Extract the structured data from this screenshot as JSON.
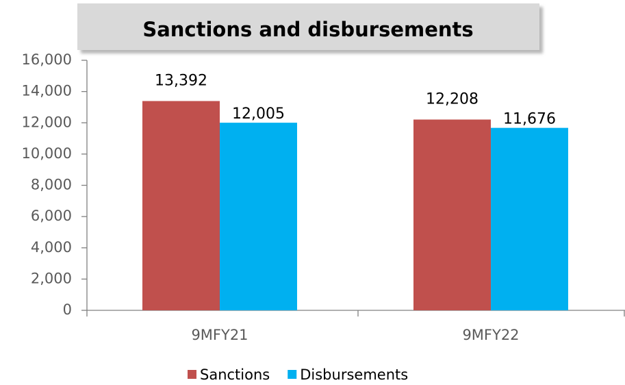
{
  "chart_data": {
    "type": "bar",
    "title": "Sanctions and disbursements",
    "categories": [
      "9MFY21",
      "9MFY22"
    ],
    "series": [
      {
        "name": "Sanctions",
        "color": "#c0504d",
        "values": [
          13392,
          12208
        ],
        "value_labels": [
          "13,392",
          "12,208"
        ]
      },
      {
        "name": "Disbursements",
        "color": "#00b0f0",
        "values": [
          12005,
          11676
        ],
        "value_labels": [
          "12,005",
          "11,676"
        ]
      }
    ],
    "ylim": [
      0,
      16000
    ],
    "yticks": [
      0,
      {
        "value": 2000,
        "label": "2,000"
      },
      {
        "value": 4000,
        "label": "4,000"
      },
      {
        "value": 6000,
        "label": "6,000"
      },
      {
        "value": 8000,
        "label": "8,000"
      },
      {
        "value": 10000,
        "label": "10,000"
      },
      {
        "value": 12000,
        "label": "12,000"
      },
      {
        "value": 14000,
        "label": "14,000"
      },
      {
        "value": 16000,
        "label": "16,000"
      }
    ],
    "grid": false,
    "legend": "bottom"
  }
}
